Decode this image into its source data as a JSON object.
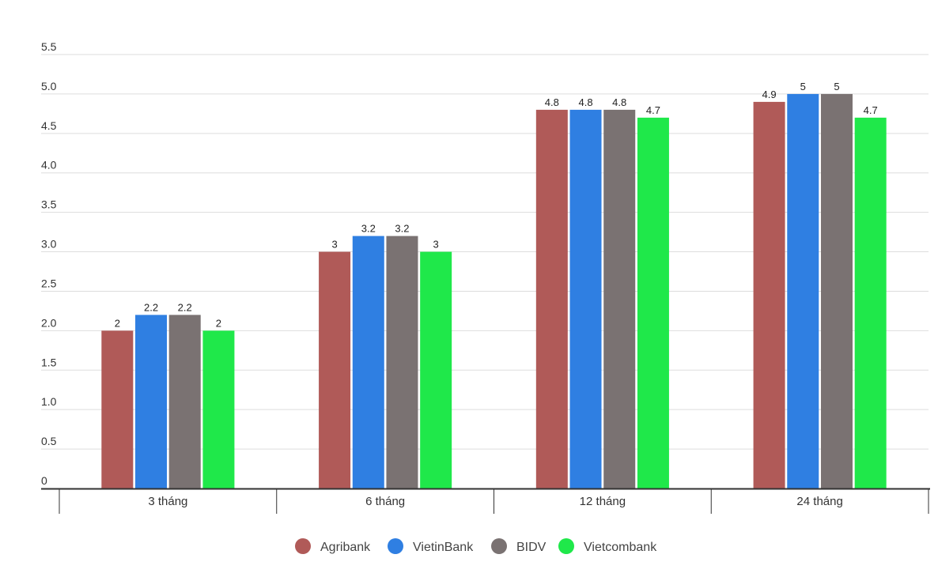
{
  "chart_data": {
    "type": "bar",
    "title": "",
    "xlabel": "",
    "ylabel": "",
    "categories": [
      "3 tháng",
      "6 tháng",
      "12 tháng",
      "24 tháng"
    ],
    "series": [
      {
        "name": "Agribank",
        "color": "#B05A58",
        "values": [
          2,
          3,
          4.8,
          4.9
        ]
      },
      {
        "name": "VietinBank",
        "color": "#2F7FE2",
        "values": [
          2.2,
          3.2,
          4.8,
          5
        ]
      },
      {
        "name": "BIDV",
        "color": "#7A7272",
        "values": [
          2.2,
          3.2,
          4.8,
          5
        ]
      },
      {
        "name": "Vietcombank",
        "color": "#1FE84A",
        "values": [
          2,
          3,
          4.7,
          4.7
        ]
      }
    ],
    "ylim": [
      0,
      5.5
    ],
    "yticks": [
      "0",
      "0.5",
      "1.0",
      "1.5",
      "2.0",
      "2.5",
      "3.0",
      "3.5",
      "4.0",
      "4.5",
      "5.0",
      "5.5"
    ],
    "grid": true,
    "legend_position": "bottom"
  }
}
